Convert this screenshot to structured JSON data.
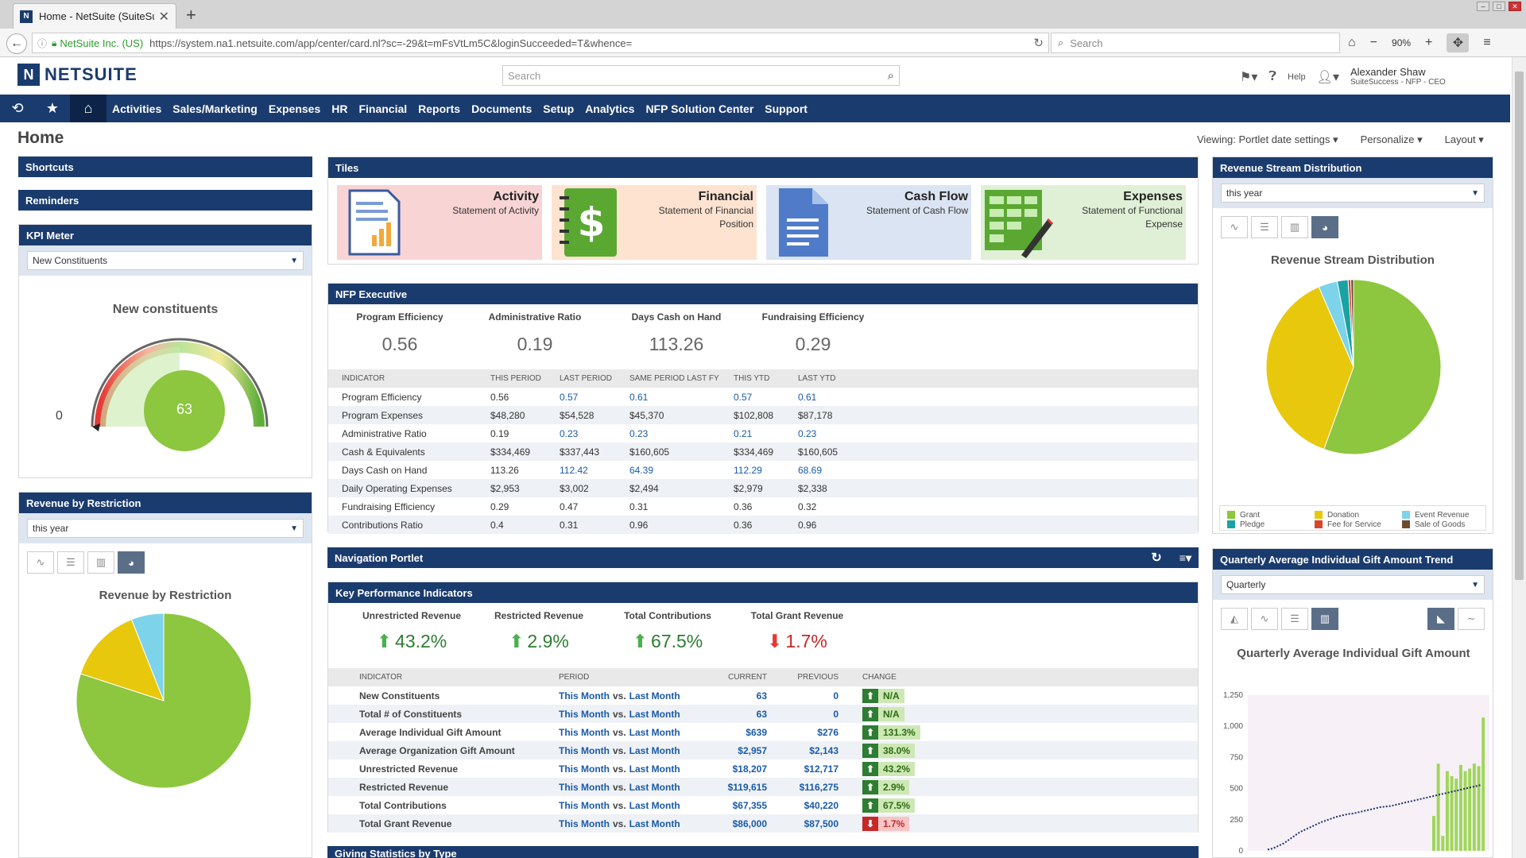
{
  "browser": {
    "tab_title": "Home - NetSuite (SuiteSu...",
    "url_org": "NetSuite Inc. (US)",
    "url": "https://system.na1.netsuite.com/app/center/card.nl?sc=-29&t=mFsVtLm5C&loginSucceeded=T&whence=",
    "search_placeholder": "Search",
    "zoom": "90%"
  },
  "header": {
    "logo_text": "NETSUITE",
    "search_placeholder": "Search",
    "help": "Help",
    "user_name": "Alexander Shaw",
    "user_role": "SuiteSuccess - NFP - CEO"
  },
  "menu": [
    "Activities",
    "Sales/Marketing",
    "Expenses",
    "HR",
    "Financial",
    "Reports",
    "Documents",
    "Setup",
    "Analytics",
    "NFP Solution Center",
    "Support"
  ],
  "page": {
    "title": "Home",
    "viewing": "Viewing: Portlet date settings",
    "personalize": "Personalize",
    "layout": "Layout"
  },
  "shortcuts": "Shortcuts",
  "reminders": "Reminders",
  "kpi_meter": {
    "title": "KPI Meter",
    "select": "New Constituents",
    "gauge_title": "New constituents",
    "zero": "0",
    "value": "63"
  },
  "rev_restriction": {
    "title": "Revenue by Restriction",
    "select": "this year",
    "chart_title": "Revenue by Restriction"
  },
  "tiles": {
    "title": "Tiles",
    "items": [
      {
        "title": "Activity",
        "sub": "Statement of Activity"
      },
      {
        "title": "Financial",
        "sub": "Statement of Financial Position"
      },
      {
        "title": "Cash Flow",
        "sub": "Statement of Cash Flow"
      },
      {
        "title": "Expenses",
        "sub": "Statement of Functional Expense"
      }
    ]
  },
  "nfp": {
    "title": "NFP Executive",
    "summary": [
      {
        "label": "Program Efficiency",
        "value": "0.56"
      },
      {
        "label": "Administrative Ratio",
        "value": "0.19"
      },
      {
        "label": "Days Cash on Hand",
        "value": "113.26"
      },
      {
        "label": "Fundraising Efficiency",
        "value": "0.29"
      }
    ],
    "headers": [
      "INDICATOR",
      "THIS PERIOD",
      "LAST PERIOD",
      "SAME PERIOD LAST FY",
      "THIS YTD",
      "LAST YTD"
    ],
    "rows": [
      [
        "Program Efficiency",
        "0.56",
        "0.57",
        "0.61",
        "0.57",
        "0.61"
      ],
      [
        "Program Expenses",
        "$48,280",
        "$54,528",
        "$45,370",
        "$102,808",
        "$87,178"
      ],
      [
        "Administrative Ratio",
        "0.19",
        "0.23",
        "0.23",
        "0.21",
        "0.23"
      ],
      [
        "Cash & Equivalents",
        "$334,469",
        "$337,443",
        "$160,605",
        "$334,469",
        "$160,605"
      ],
      [
        "Days Cash on Hand",
        "113.26",
        "112.42",
        "64.39",
        "112.29",
        "68.69"
      ],
      [
        "Daily Operating Expenses",
        "$2,953",
        "$3,002",
        "$2,494",
        "$2,979",
        "$2,338"
      ],
      [
        "Fundraising Efficiency",
        "0.29",
        "0.47",
        "0.31",
        "0.36",
        "0.32"
      ],
      [
        "Contributions Ratio",
        "0.4",
        "0.31",
        "0.96",
        "0.36",
        "0.96"
      ]
    ]
  },
  "nav_portlet": {
    "title": "Navigation Portlet"
  },
  "kpi": {
    "title": "Key Performance Indicators",
    "summary": [
      {
        "label": "Unrestricted Revenue",
        "value": "43.2%",
        "dir": "up"
      },
      {
        "label": "Restricted Revenue",
        "value": "2.9%",
        "dir": "up"
      },
      {
        "label": "Total Contributions",
        "value": "67.5%",
        "dir": "up"
      },
      {
        "label": "Total Grant Revenue",
        "value": "1.7%",
        "dir": "down"
      }
    ],
    "headers": [
      "INDICATOR",
      "PERIOD",
      "CURRENT",
      "PREVIOUS",
      "CHANGE"
    ],
    "period_a": "This Month",
    "period_vs": "vs.",
    "period_b": "Last Month",
    "rows": [
      {
        "name": "New Constituents",
        "current": "63",
        "previous": "0",
        "change": "N/A",
        "dir": "up"
      },
      {
        "name": "Total # of Constituents",
        "current": "63",
        "previous": "0",
        "change": "N/A",
        "dir": "up"
      },
      {
        "name": "Average Individual Gift Amount",
        "current": "$639",
        "previous": "$276",
        "change": "131.3%",
        "dir": "up"
      },
      {
        "name": "Average Organization Gift Amount",
        "current": "$2,957",
        "previous": "$2,143",
        "change": "38.0%",
        "dir": "up"
      },
      {
        "name": "Unrestricted Revenue",
        "current": "$18,207",
        "previous": "$12,717",
        "change": "43.2%",
        "dir": "up"
      },
      {
        "name": "Restricted Revenue",
        "current": "$119,615",
        "previous": "$116,275",
        "change": "2.9%",
        "dir": "up"
      },
      {
        "name": "Total Contributions",
        "current": "$67,355",
        "previous": "$40,220",
        "change": "67.5%",
        "dir": "up"
      },
      {
        "name": "Total Grant Revenue",
        "current": "$86,000",
        "previous": "$87,500",
        "change": "1.7%",
        "dir": "down"
      }
    ]
  },
  "giving": {
    "title": "Giving Statistics by Type"
  },
  "rev_stream": {
    "title": "Revenue Stream Distribution",
    "select": "this year",
    "chart_title": "Revenue Stream Distribution",
    "legend": [
      "Grant",
      "Donation",
      "Event Revenue",
      "Pledge",
      "Fee for Service",
      "Sale of Goods"
    ]
  },
  "gift_trend": {
    "title": "Quarterly Average Individual Gift Amount Trend",
    "select": "Quarterly",
    "chart_title": "Quarterly Average Individual Gift Amount",
    "yticks": [
      "1,250",
      "1,000",
      "750",
      "500",
      "250",
      "0"
    ]
  },
  "colors": {
    "navy": "#1a3b6e",
    "green": "#8dc63f",
    "yellow": "#e8c80c",
    "cyan": "#7dd3ea",
    "teal": "#1aa3a3",
    "red": "#d9442e",
    "brown": "#6b4a2f"
  },
  "chart_data": [
    {
      "type": "pie",
      "title": "Revenue by Restriction",
      "categories": [
        "",
        "",
        ""
      ],
      "values": [
        80,
        14,
        6
      ]
    },
    {
      "type": "pie",
      "title": "Revenue Stream Distribution",
      "categories": [
        "Grant",
        "Donation",
        "Event Revenue",
        "Pledge",
        "Fee for Service",
        "Sale of Goods"
      ],
      "values": [
        55.5,
        38.0,
        3.5,
        2.0,
        0.5,
        0.5
      ]
    },
    {
      "type": "bar",
      "title": "Quarterly Average Individual Gift Amount",
      "ylim": [
        0,
        1250
      ],
      "values": [
        0,
        0,
        0,
        0,
        0,
        0,
        0,
        0,
        0,
        0,
        0,
        0,
        0,
        0,
        0,
        0,
        0,
        0,
        0,
        0,
        0,
        0,
        0,
        0,
        0,
        0,
        0,
        0,
        0,
        0,
        0,
        0,
        0,
        0,
        0,
        0,
        0,
        0,
        0,
        0,
        280,
        700,
        120,
        640,
        600,
        580,
        690,
        640,
        660,
        700,
        680,
        1070
      ],
      "trend": [
        10,
        20,
        40,
        60,
        90,
        120,
        150,
        170,
        190,
        210,
        230,
        245,
        260,
        275,
        285,
        295,
        300,
        310,
        320,
        330,
        340,
        350,
        355,
        360,
        370,
        380,
        390,
        400,
        410,
        420,
        430,
        440,
        450,
        460,
        470,
        480,
        490,
        500,
        510,
        520,
        530
      ]
    }
  ]
}
